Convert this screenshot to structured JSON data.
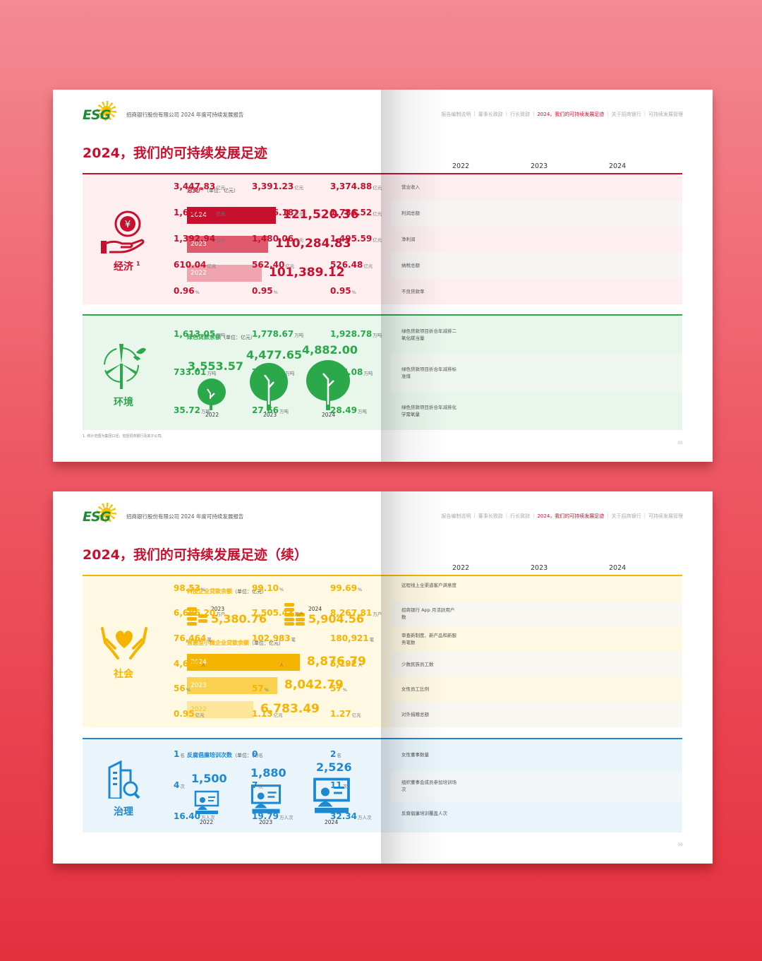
{
  "header": {
    "logo_text": "ESG",
    "report_title": "招商银行股份有限公司 2024 年度可持续发展报告",
    "nav": [
      "报告编制说明",
      "董事长致辞",
      "行长致辞",
      "2024，我们的可持续发展足迹",
      "关于招商银行",
      "可持续发展管理"
    ],
    "nav_active_index": 3
  },
  "years": [
    "2022",
    "2023",
    "2024"
  ],
  "page1": {
    "title": "2024，我们的可持续发展足迹",
    "economy": {
      "label": "经济",
      "footnote_mark": "1",
      "chart_title": "总资产",
      "unit": "（单位：亿元）",
      "bars": [
        {
          "year": "2024",
          "value": "121,520.36"
        },
        {
          "year": "2023",
          "value": "110,284.83"
        },
        {
          "year": "2022",
          "value": "101,389.12"
        }
      ],
      "rows": [
        {
          "label": "营业收入",
          "values": [
            "3,447.83",
            "3,391.23",
            "3,374.88"
          ],
          "unit": "亿元"
        },
        {
          "label": "利润总额",
          "values": [
            "1,651.13",
            "1,766.18",
            "1,786.52"
          ],
          "unit": "亿元"
        },
        {
          "label": "净利润",
          "values": [
            "1,392.94",
            "1,480.06",
            "1,495.59"
          ],
          "unit": "亿元"
        },
        {
          "label": "纳税总额",
          "values": [
            "610.04",
            "562.40",
            "526.48"
          ],
          "unit": "亿元"
        },
        {
          "label": "不良贷款率",
          "values": [
            "0.96",
            "0.95",
            "0.95"
          ],
          "unit": "%"
        }
      ]
    },
    "environment": {
      "label": "环境",
      "chart_title": "绿色贷款余额",
      "unit": "（单位：亿元）",
      "trees": [
        {
          "year": "2022",
          "value": "3,553.57"
        },
        {
          "year": "2023",
          "value": "4,477.65"
        },
        {
          "year": "2024",
          "value": "4,882.00"
        }
      ],
      "rows": [
        {
          "label": "绿色贷款项目折合年减排二氧化碳当量",
          "values": [
            "1,613.05",
            "1,778.67",
            "1,928.78"
          ],
          "unit": "万吨"
        },
        {
          "label": "绿色贷款项目折合年减排标准煤",
          "values": [
            "733.01",
            "799.42",
            "856.08"
          ],
          "unit": "万吨"
        },
        {
          "label": "绿色贷款项目折合年减排化学需氧量",
          "values": [
            "35.72",
            "27.66",
            "28.49"
          ],
          "unit": "万吨"
        }
      ]
    },
    "footnote": "1. 统计范围为集团口径，包括招商银行及其子公司。",
    "page_number": "05"
  },
  "page2": {
    "title": "2024，我们的可持续发展足迹（续）",
    "social": {
      "label": "社会",
      "tech_title": "科技企业贷款余额",
      "tech_unit": "（单位：亿元）",
      "tech": [
        {
          "year": "2023",
          "value": "5,380.76"
        },
        {
          "year": "2024",
          "value": "5,904.56"
        }
      ],
      "sme_title": "普惠型小微企业贷款余额",
      "sme_unit": "（单位：亿元）",
      "bars": [
        {
          "year": "2024",
          "value": "8,876.79"
        },
        {
          "year": "2023",
          "value": "8,042.79"
        },
        {
          "year": "2022",
          "value": "6,783.49"
        }
      ],
      "rows": [
        {
          "label": "远程线上全渠道客户满意度",
          "values": [
            "98.53",
            "99.10",
            "99.69"
          ],
          "unit": "%"
        },
        {
          "label": "招商银行 App 月活跃用户数",
          "values": [
            "6,686.20",
            "7,505.43",
            "8,267.81"
          ],
          "unit": "万户"
        },
        {
          "label": "审查新制度、新产品和新服务笔数",
          "values": [
            "76,464",
            "102,983",
            "180,921"
          ],
          "unit": "笔"
        },
        {
          "label": "少数民族员工数",
          "values": [
            "4,625",
            "4,942",
            "5,192"
          ],
          "unit": "人"
        },
        {
          "label": "女性员工比例",
          "values": [
            "56",
            "57",
            "57"
          ],
          "unit": "%"
        },
        {
          "label": "对外捐赠总额",
          "values": [
            "0.95",
            "1.15",
            "1.27"
          ],
          "unit": "亿元"
        }
      ]
    },
    "governance": {
      "label": "治理",
      "chart_title": "反腐倡廉培训次数",
      "unit": "（单位：次）",
      "items": [
        {
          "year": "2022",
          "value": "1,500"
        },
        {
          "year": "2023",
          "value": "1,880"
        },
        {
          "year": "2024",
          "value": "2,526"
        }
      ],
      "rows": [
        {
          "label": "女性董事数量",
          "values": [
            "1",
            "0",
            "2"
          ],
          "unit": "名"
        },
        {
          "label": "组织董事会成员参加培训场次",
          "values": [
            "4",
            "7",
            "11"
          ],
          "unit": "次"
        },
        {
          "label": "反腐倡廉培训覆盖人次",
          "values": [
            "16.40",
            "19.79",
            "32.34"
          ],
          "unit": "万人次"
        }
      ]
    },
    "page_number": "06"
  },
  "colors": {
    "red": "#c8102e",
    "green": "#2aa84a",
    "yellow": "#f5b400",
    "blue": "#1e88d0"
  }
}
